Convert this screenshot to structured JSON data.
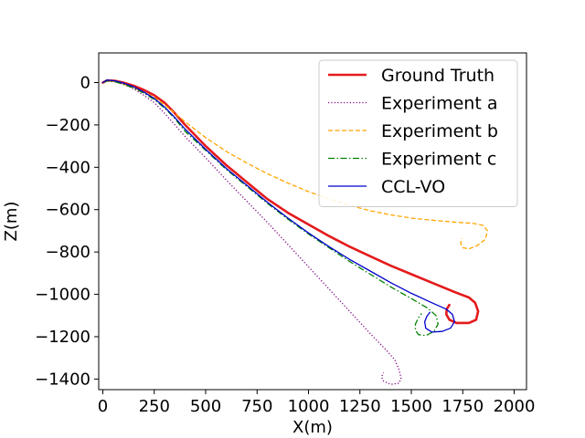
{
  "chart_data": {
    "type": "line",
    "title": "",
    "xlabel": "X(m)",
    "ylabel": "Z(m)",
    "xlim": [
      -20,
      2060
    ],
    "ylim": [
      -1450,
      140
    ],
    "xticks": [
      0,
      250,
      500,
      750,
      1000,
      1250,
      1500,
      1750,
      2000
    ],
    "yticks": [
      0,
      -200,
      -400,
      -600,
      -800,
      -1000,
      -1200,
      -1400
    ],
    "xtick_labels": [
      "0",
      "250",
      "500",
      "750",
      "1000",
      "1250",
      "1500",
      "1750",
      "2000"
    ],
    "ytick_labels": [
      "0",
      "−200",
      "−400",
      "−600",
      "−800",
      "−1000",
      "−1200",
      "−1400"
    ],
    "grid": false,
    "legend_position": "top-right",
    "series": [
      {
        "name": "Ground Truth",
        "color": "#e41a1c",
        "style": "solid",
        "width": 2.6,
        "points": [
          [
            0,
            0
          ],
          [
            20,
            10
          ],
          [
            60,
            8
          ],
          [
            100,
            0
          ],
          [
            150,
            -15
          ],
          [
            200,
            -35
          ],
          [
            250,
            -60
          ],
          [
            300,
            -95
          ],
          [
            350,
            -145
          ],
          [
            400,
            -200
          ],
          [
            500,
            -300
          ],
          [
            600,
            -390
          ],
          [
            700,
            -470
          ],
          [
            800,
            -550
          ],
          [
            900,
            -615
          ],
          [
            1000,
            -670
          ],
          [
            1100,
            -725
          ],
          [
            1200,
            -775
          ],
          [
            1300,
            -820
          ],
          [
            1400,
            -865
          ],
          [
            1500,
            -905
          ],
          [
            1600,
            -945
          ],
          [
            1700,
            -985
          ],
          [
            1780,
            -1015
          ],
          [
            1810,
            -1040
          ],
          [
            1825,
            -1080
          ],
          [
            1815,
            -1120
          ],
          [
            1780,
            -1135
          ],
          [
            1720,
            -1135
          ],
          [
            1685,
            -1120
          ],
          [
            1670,
            -1095
          ],
          [
            1672,
            -1070
          ],
          [
            1685,
            -1050
          ]
        ]
      },
      {
        "name": "Experiment a",
        "color": "#800080",
        "style": "dotted",
        "width": 1.3,
        "points": [
          [
            0,
            0
          ],
          [
            20,
            8
          ],
          [
            60,
            4
          ],
          [
            100,
            -8
          ],
          [
            150,
            -30
          ],
          [
            200,
            -60
          ],
          [
            250,
            -95
          ],
          [
            300,
            -145
          ],
          [
            350,
            -200
          ],
          [
            400,
            -255
          ],
          [
            500,
            -355
          ],
          [
            600,
            -460
          ],
          [
            700,
            -560
          ],
          [
            800,
            -660
          ],
          [
            900,
            -765
          ],
          [
            1000,
            -870
          ],
          [
            1100,
            -975
          ],
          [
            1200,
            -1080
          ],
          [
            1300,
            -1185
          ],
          [
            1380,
            -1265
          ],
          [
            1420,
            -1310
          ],
          [
            1440,
            -1355
          ],
          [
            1450,
            -1395
          ],
          [
            1440,
            -1420
          ],
          [
            1400,
            -1425
          ],
          [
            1365,
            -1410
          ],
          [
            1355,
            -1390
          ],
          [
            1365,
            -1370
          ]
        ]
      },
      {
        "name": "Experiment b",
        "color": "#ffa500",
        "style": "dashed",
        "width": 1.3,
        "points": [
          [
            0,
            0
          ],
          [
            20,
            8
          ],
          [
            60,
            4
          ],
          [
            100,
            -8
          ],
          [
            150,
            -25
          ],
          [
            200,
            -45
          ],
          [
            250,
            -70
          ],
          [
            300,
            -105
          ],
          [
            350,
            -145
          ],
          [
            400,
            -185
          ],
          [
            500,
            -260
          ],
          [
            600,
            -325
          ],
          [
            700,
            -380
          ],
          [
            800,
            -430
          ],
          [
            900,
            -475
          ],
          [
            1000,
            -515
          ],
          [
            1100,
            -550
          ],
          [
            1200,
            -580
          ],
          [
            1300,
            -605
          ],
          [
            1400,
            -625
          ],
          [
            1500,
            -640
          ],
          [
            1600,
            -650
          ],
          [
            1700,
            -658
          ],
          [
            1800,
            -665
          ],
          [
            1850,
            -675
          ],
          [
            1870,
            -700
          ],
          [
            1860,
            -740
          ],
          [
            1820,
            -770
          ],
          [
            1780,
            -785
          ],
          [
            1750,
            -780
          ],
          [
            1740,
            -760
          ],
          [
            1745,
            -735
          ]
        ]
      },
      {
        "name": "Experiment c",
        "color": "#008000",
        "style": "dashdot",
        "width": 1.3,
        "points": [
          [
            0,
            0
          ],
          [
            20,
            8
          ],
          [
            60,
            4
          ],
          [
            100,
            -8
          ],
          [
            150,
            -25
          ],
          [
            200,
            -50
          ],
          [
            250,
            -80
          ],
          [
            300,
            -120
          ],
          [
            350,
            -170
          ],
          [
            400,
            -230
          ],
          [
            500,
            -320
          ],
          [
            600,
            -410
          ],
          [
            700,
            -490
          ],
          [
            800,
            -570
          ],
          [
            900,
            -645
          ],
          [
            1000,
            -715
          ],
          [
            1100,
            -780
          ],
          [
            1200,
            -845
          ],
          [
            1300,
            -905
          ],
          [
            1400,
            -965
          ],
          [
            1500,
            -1020
          ],
          [
            1580,
            -1065
          ],
          [
            1620,
            -1100
          ],
          [
            1630,
            -1140
          ],
          [
            1610,
            -1175
          ],
          [
            1570,
            -1195
          ],
          [
            1535,
            -1190
          ],
          [
            1520,
            -1170
          ],
          [
            1520,
            -1140
          ],
          [
            1535,
            -1110
          ],
          [
            1550,
            -1090
          ]
        ]
      },
      {
        "name": "CCL-VO",
        "color": "#0000cd",
        "style": "solid",
        "width": 1.3,
        "points": [
          [
            0,
            0
          ],
          [
            20,
            12
          ],
          [
            60,
            8
          ],
          [
            100,
            -2
          ],
          [
            150,
            -20
          ],
          [
            200,
            -45
          ],
          [
            250,
            -75
          ],
          [
            300,
            -115
          ],
          [
            350,
            -165
          ],
          [
            400,
            -220
          ],
          [
            500,
            -315
          ],
          [
            600,
            -405
          ],
          [
            700,
            -485
          ],
          [
            800,
            -565
          ],
          [
            900,
            -640
          ],
          [
            1000,
            -710
          ],
          [
            1100,
            -775
          ],
          [
            1200,
            -835
          ],
          [
            1300,
            -890
          ],
          [
            1400,
            -945
          ],
          [
            1500,
            -995
          ],
          [
            1600,
            -1040
          ],
          [
            1670,
            -1070
          ],
          [
            1700,
            -1095
          ],
          [
            1710,
            -1130
          ],
          [
            1690,
            -1160
          ],
          [
            1650,
            -1175
          ],
          [
            1600,
            -1178
          ],
          [
            1570,
            -1160
          ],
          [
            1565,
            -1130
          ],
          [
            1575,
            -1105
          ],
          [
            1590,
            -1085
          ]
        ]
      }
    ]
  }
}
